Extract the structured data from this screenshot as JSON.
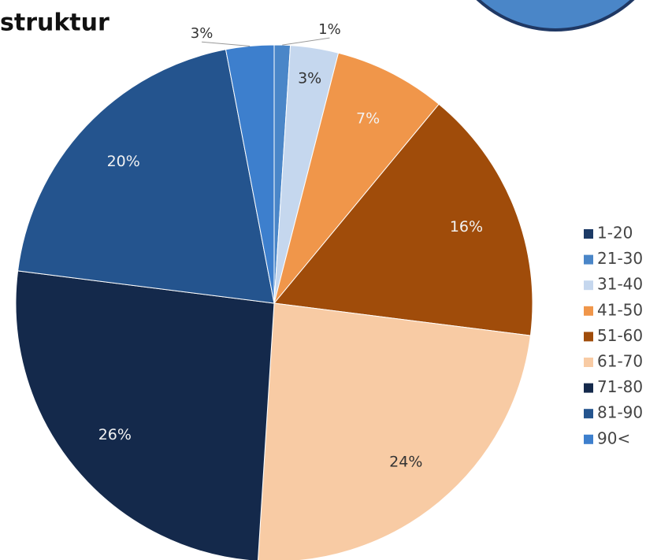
{
  "chart_data": {
    "type": "pie",
    "title": "struktur",
    "categories": [
      "1-20",
      "21-30",
      "31-40",
      "41-50",
      "51-60",
      "61-70",
      "71-80",
      "81-90",
      "90<"
    ],
    "values": [
      0,
      1,
      3,
      7,
      16,
      24,
      26,
      20,
      3
    ],
    "value_labels": [
      null,
      "1%",
      "3%",
      "7%",
      "16%",
      "24%",
      "26%",
      "20%",
      "3%"
    ],
    "colors": [
      "#1c3a66",
      "#4a86c8",
      "#c5d7ee",
      "#f0964a",
      "#a04c0a",
      "#f8cba4",
      "#14294b",
      "#24548e",
      "#3d7fcd"
    ],
    "legend": "right"
  }
}
